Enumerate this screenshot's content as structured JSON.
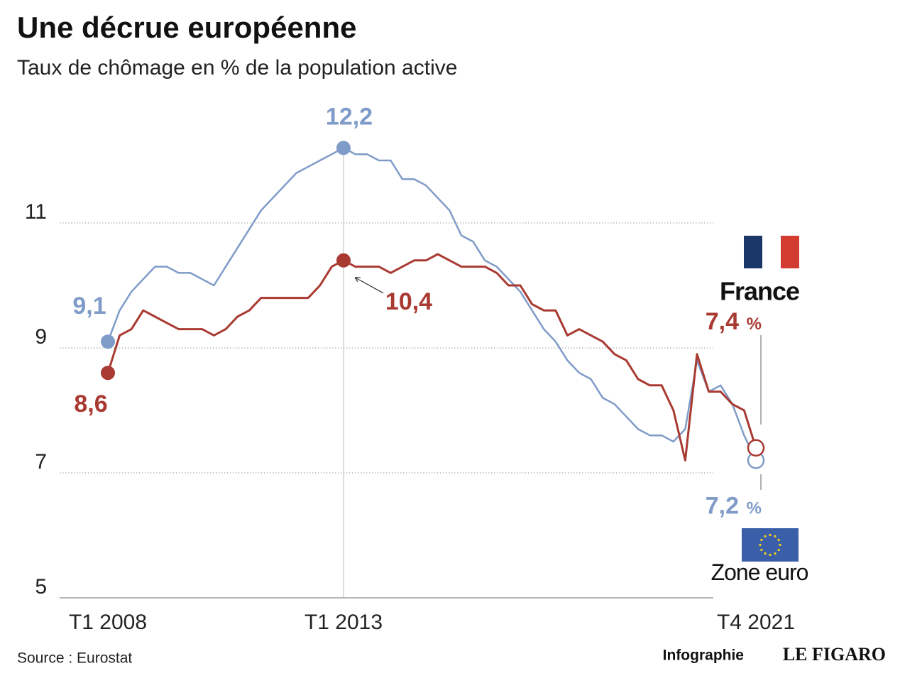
{
  "chart_data": {
    "type": "line",
    "title": "Une décrue européenne",
    "subtitle": "Taux de chômage en % de la population active",
    "source": "Source : Eurostat",
    "credit": "Infographie",
    "brand": "LE FIGARO",
    "value_unit": "%",
    "categories": [
      "T1 2008",
      null,
      null,
      null,
      null,
      null,
      null,
      null,
      null,
      null,
      null,
      null,
      null,
      null,
      null,
      null,
      null,
      null,
      null,
      null,
      "T1 2013",
      null,
      null,
      null,
      null,
      null,
      null,
      null,
      null,
      null,
      null,
      null,
      null,
      null,
      null,
      null,
      null,
      null,
      null,
      null,
      null,
      null,
      null,
      null,
      null,
      null,
      null,
      null,
      null,
      null,
      null,
      null,
      null,
      null,
      null,
      "T4 2021"
    ],
    "ylim": [
      5,
      13
    ],
    "yticks": [
      5,
      7,
      9,
      11
    ],
    "grid": true,
    "series": [
      {
        "name": "Zone euro",
        "color": "#7f9bc8",
        "values": [
          9.1,
          9.6,
          9.9,
          10.1,
          10.3,
          10.3,
          10.2,
          10.2,
          10.1,
          10.0,
          10.3,
          10.6,
          10.9,
          11.2,
          11.4,
          11.6,
          11.8,
          11.9,
          12.0,
          12.1,
          12.2,
          12.1,
          12.1,
          12.0,
          12.0,
          11.7,
          11.7,
          11.6,
          11.4,
          11.2,
          10.8,
          10.7,
          10.4,
          10.3,
          10.1,
          9.9,
          9.6,
          9.3,
          9.1,
          8.8,
          8.6,
          8.5,
          8.2,
          8.1,
          7.9,
          7.7,
          7.6,
          7.6,
          7.5,
          7.7,
          8.8,
          8.3,
          8.4,
          8.1,
          7.6,
          7.2
        ],
        "value_labels": [
          "9,1",
          null,
          null,
          null,
          null,
          null,
          null,
          null,
          null,
          null,
          null,
          null,
          null,
          null,
          null,
          null,
          null,
          null,
          null,
          null,
          "12,2",
          null,
          null,
          null,
          null,
          null,
          null,
          null,
          null,
          null,
          null,
          null,
          null,
          null,
          null,
          null,
          null,
          null,
          null,
          null,
          null,
          null,
          null,
          null,
          null,
          null,
          null,
          null,
          null,
          null,
          null,
          null,
          null,
          null,
          null,
          "7,2"
        ]
      },
      {
        "name": "France",
        "color": "#a93a32",
        "values": [
          8.6,
          9.2,
          9.3,
          9.6,
          9.5,
          9.4,
          9.3,
          9.3,
          9.3,
          9.2,
          9.3,
          9.5,
          9.6,
          9.8,
          9.8,
          9.8,
          9.8,
          9.8,
          10.0,
          10.3,
          10.4,
          10.3,
          10.3,
          10.3,
          10.2,
          10.3,
          10.4,
          10.4,
          10.5,
          10.4,
          10.3,
          10.3,
          10.3,
          10.2,
          10.0,
          10.0,
          9.7,
          9.6,
          9.6,
          9.2,
          9.3,
          9.2,
          9.1,
          8.9,
          8.8,
          8.5,
          8.4,
          8.4,
          8.0,
          7.2,
          8.9,
          8.3,
          8.3,
          8.1,
          8.0,
          7.4
        ],
        "value_labels": [
          "8,6",
          null,
          null,
          null,
          null,
          null,
          null,
          null,
          null,
          null,
          null,
          null,
          null,
          null,
          null,
          null,
          null,
          null,
          null,
          null,
          "10,4",
          null,
          null,
          null,
          null,
          null,
          null,
          null,
          null,
          null,
          null,
          null,
          null,
          null,
          null,
          null,
          null,
          null,
          null,
          null,
          null,
          null,
          null,
          null,
          null,
          null,
          null,
          null,
          null,
          null,
          null,
          null,
          null,
          null,
          null,
          "7,4"
        ]
      }
    ]
  }
}
